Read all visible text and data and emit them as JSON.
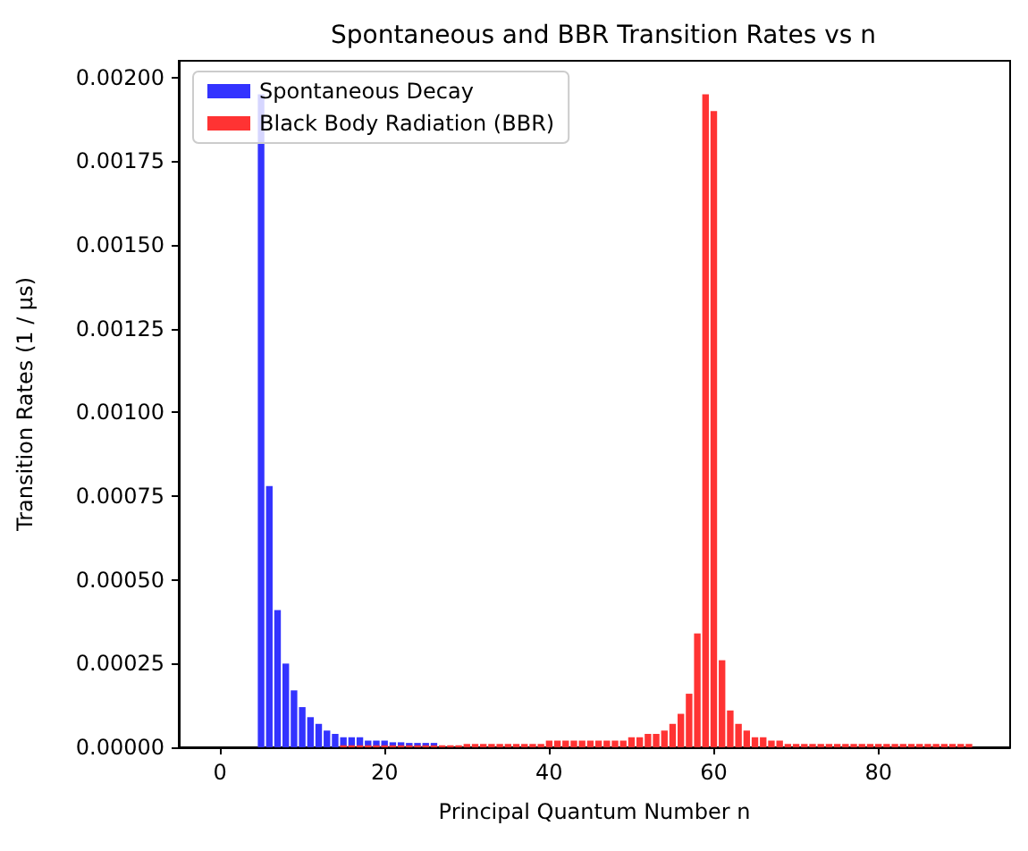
{
  "chart_data": {
    "type": "bar",
    "title": "Spontaneous and BBR Transition Rates vs n",
    "xlabel": "Principal Quantum Number n",
    "ylabel": "Transition Rates (1 / μs)",
    "series": [
      {
        "name": "Spontaneous Decay",
        "color": "#3333ff",
        "x": [
          5,
          6,
          7,
          8,
          9,
          10,
          11,
          12,
          13,
          14,
          15,
          16,
          17,
          18,
          19,
          20,
          21,
          22,
          23,
          24,
          25,
          26
        ],
        "values": [
          0.00195,
          0.00078,
          0.00041,
          0.00025,
          0.00017,
          0.00012,
          9e-05,
          7e-05,
          5e-05,
          4e-05,
          3e-05,
          3e-05,
          3e-05,
          2e-05,
          2e-05,
          2e-05,
          1.5e-05,
          1.5e-05,
          1.3e-05,
          1.3e-05,
          1.3e-05,
          1.3e-05
        ]
      },
      {
        "name": "Black Body Radiation (BBR)",
        "color": "#ff3333",
        "x": [
          15,
          16,
          17,
          18,
          19,
          20,
          21,
          22,
          23,
          24,
          25,
          26,
          27,
          28,
          29,
          30,
          31,
          32,
          33,
          34,
          35,
          36,
          37,
          38,
          39,
          40,
          41,
          42,
          43,
          44,
          45,
          46,
          47,
          48,
          49,
          50,
          51,
          52,
          53,
          54,
          55,
          56,
          57,
          58,
          59,
          60,
          61,
          62,
          63,
          64,
          65,
          66,
          67,
          68,
          69,
          70,
          71,
          72,
          73,
          74,
          75,
          76,
          77,
          78,
          79,
          80,
          81,
          82,
          83,
          84,
          85,
          86,
          87,
          88,
          89,
          90,
          91
        ],
        "values": [
          6e-06,
          6e-06,
          6e-06,
          6e-06,
          6e-06,
          6e-06,
          6e-06,
          6e-06,
          6e-06,
          6e-06,
          6e-06,
          6e-06,
          6e-06,
          6e-06,
          6e-06,
          1e-05,
          1e-05,
          1e-05,
          1e-05,
          1e-05,
          1e-05,
          1e-05,
          1e-05,
          1e-05,
          1e-05,
          2e-05,
          2e-05,
          2e-05,
          2e-05,
          2e-05,
          2e-05,
          2e-05,
          2e-05,
          2e-05,
          2e-05,
          3e-05,
          3e-05,
          4e-05,
          4e-05,
          5e-05,
          7e-05,
          0.0001,
          0.00016,
          0.00034,
          0.00195,
          0.0019,
          0.00026,
          0.00011,
          7e-05,
          5e-05,
          3e-05,
          3e-05,
          2e-05,
          2e-05,
          1e-05,
          1e-05,
          1e-05,
          1e-05,
          1e-05,
          1e-05,
          1e-05,
          1e-05,
          1e-05,
          1e-05,
          1e-05,
          1e-05,
          1e-05,
          1e-05,
          1e-05,
          1e-05,
          1e-05,
          1e-05,
          1e-05,
          1e-05,
          1e-05,
          1e-05,
          1e-05
        ]
      }
    ],
    "xlim": [
      -5,
      96
    ],
    "xticks": [
      0,
      20,
      40,
      60,
      80
    ],
    "ylim": [
      0,
      0.00205
    ],
    "yticks": [
      {
        "value": 0,
        "label": "0.00000"
      },
      {
        "value": 0.00025,
        "label": "0.00025"
      },
      {
        "value": 0.0005,
        "label": "0.00050"
      },
      {
        "value": 0.00075,
        "label": "0.00075"
      },
      {
        "value": 0.001,
        "label": "0.00100"
      },
      {
        "value": 0.00125,
        "label": "0.00125"
      },
      {
        "value": 0.0015,
        "label": "0.00150"
      },
      {
        "value": 0.00175,
        "label": "0.00175"
      },
      {
        "value": 0.002,
        "label": "0.00200"
      }
    ],
    "grid": false,
    "legend": "top left"
  }
}
